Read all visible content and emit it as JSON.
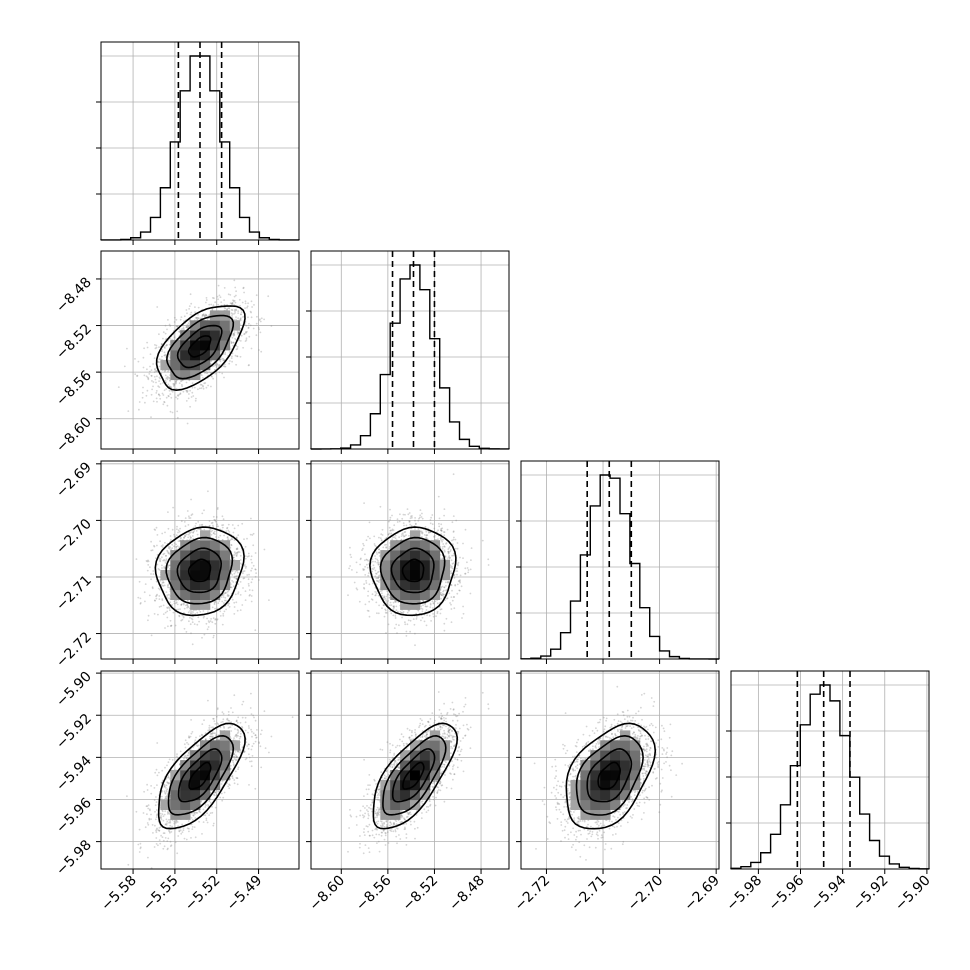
{
  "chart_data": {
    "type": "corner",
    "parameters": [
      {
        "mean": -5.532,
        "sd": 0.0155,
        "q16": -5.5475,
        "q50": -5.532,
        "q84": -5.5165,
        "range": [
          -5.603,
          -5.461
        ],
        "x_ticks": [
          "−5.58",
          "−5.55",
          "−5.52",
          "−5.49"
        ],
        "y_ticks": []
      },
      {
        "mean": -8.538,
        "sd": 0.018,
        "q16": -8.556,
        "q50": -8.538,
        "q84": -8.52,
        "range": [
          -8.626,
          -8.456
        ],
        "x_ticks": [
          "−8.60",
          "−8.56",
          "−8.52",
          "−8.48"
        ],
        "y_ticks": [
          "−8.48",
          "−8.52",
          "−8.56",
          "−8.60"
        ]
      },
      {
        "mean": -2.7089,
        "sd": 0.0039,
        "q16": -2.7128,
        "q50": -2.7089,
        "q84": -2.705,
        "range": [
          -2.7245,
          -2.6895
        ],
        "x_ticks": [
          "−2.72",
          "−2.71",
          "−2.70",
          "−2.69"
        ],
        "y_ticks": [
          "−2.69",
          "−2.70",
          "−2.71",
          "−2.72"
        ]
      },
      {
        "mean": -5.949,
        "sd": 0.0125,
        "q16": -5.9615,
        "q50": -5.949,
        "q84": -5.9365,
        "range": [
          -5.993,
          -5.899
        ],
        "x_ticks": [
          "−5.98",
          "−5.96",
          "−5.94",
          "−5.92",
          "−5.90"
        ],
        "y_ticks": [
          "−5.90",
          "−5.92",
          "−5.94",
          "−5.96",
          "−5.98"
        ]
      }
    ],
    "correlations": {
      "1-0": 0.55,
      "2-0": 0.12,
      "2-1": 0.05,
      "3-0": 0.68,
      "3-1": 0.7,
      "3-2": 0.42
    },
    "contour_levels_sigma": [
      0.5,
      1.0,
      1.5,
      2.0
    ],
    "histogram_bins": 20,
    "grid": true
  }
}
